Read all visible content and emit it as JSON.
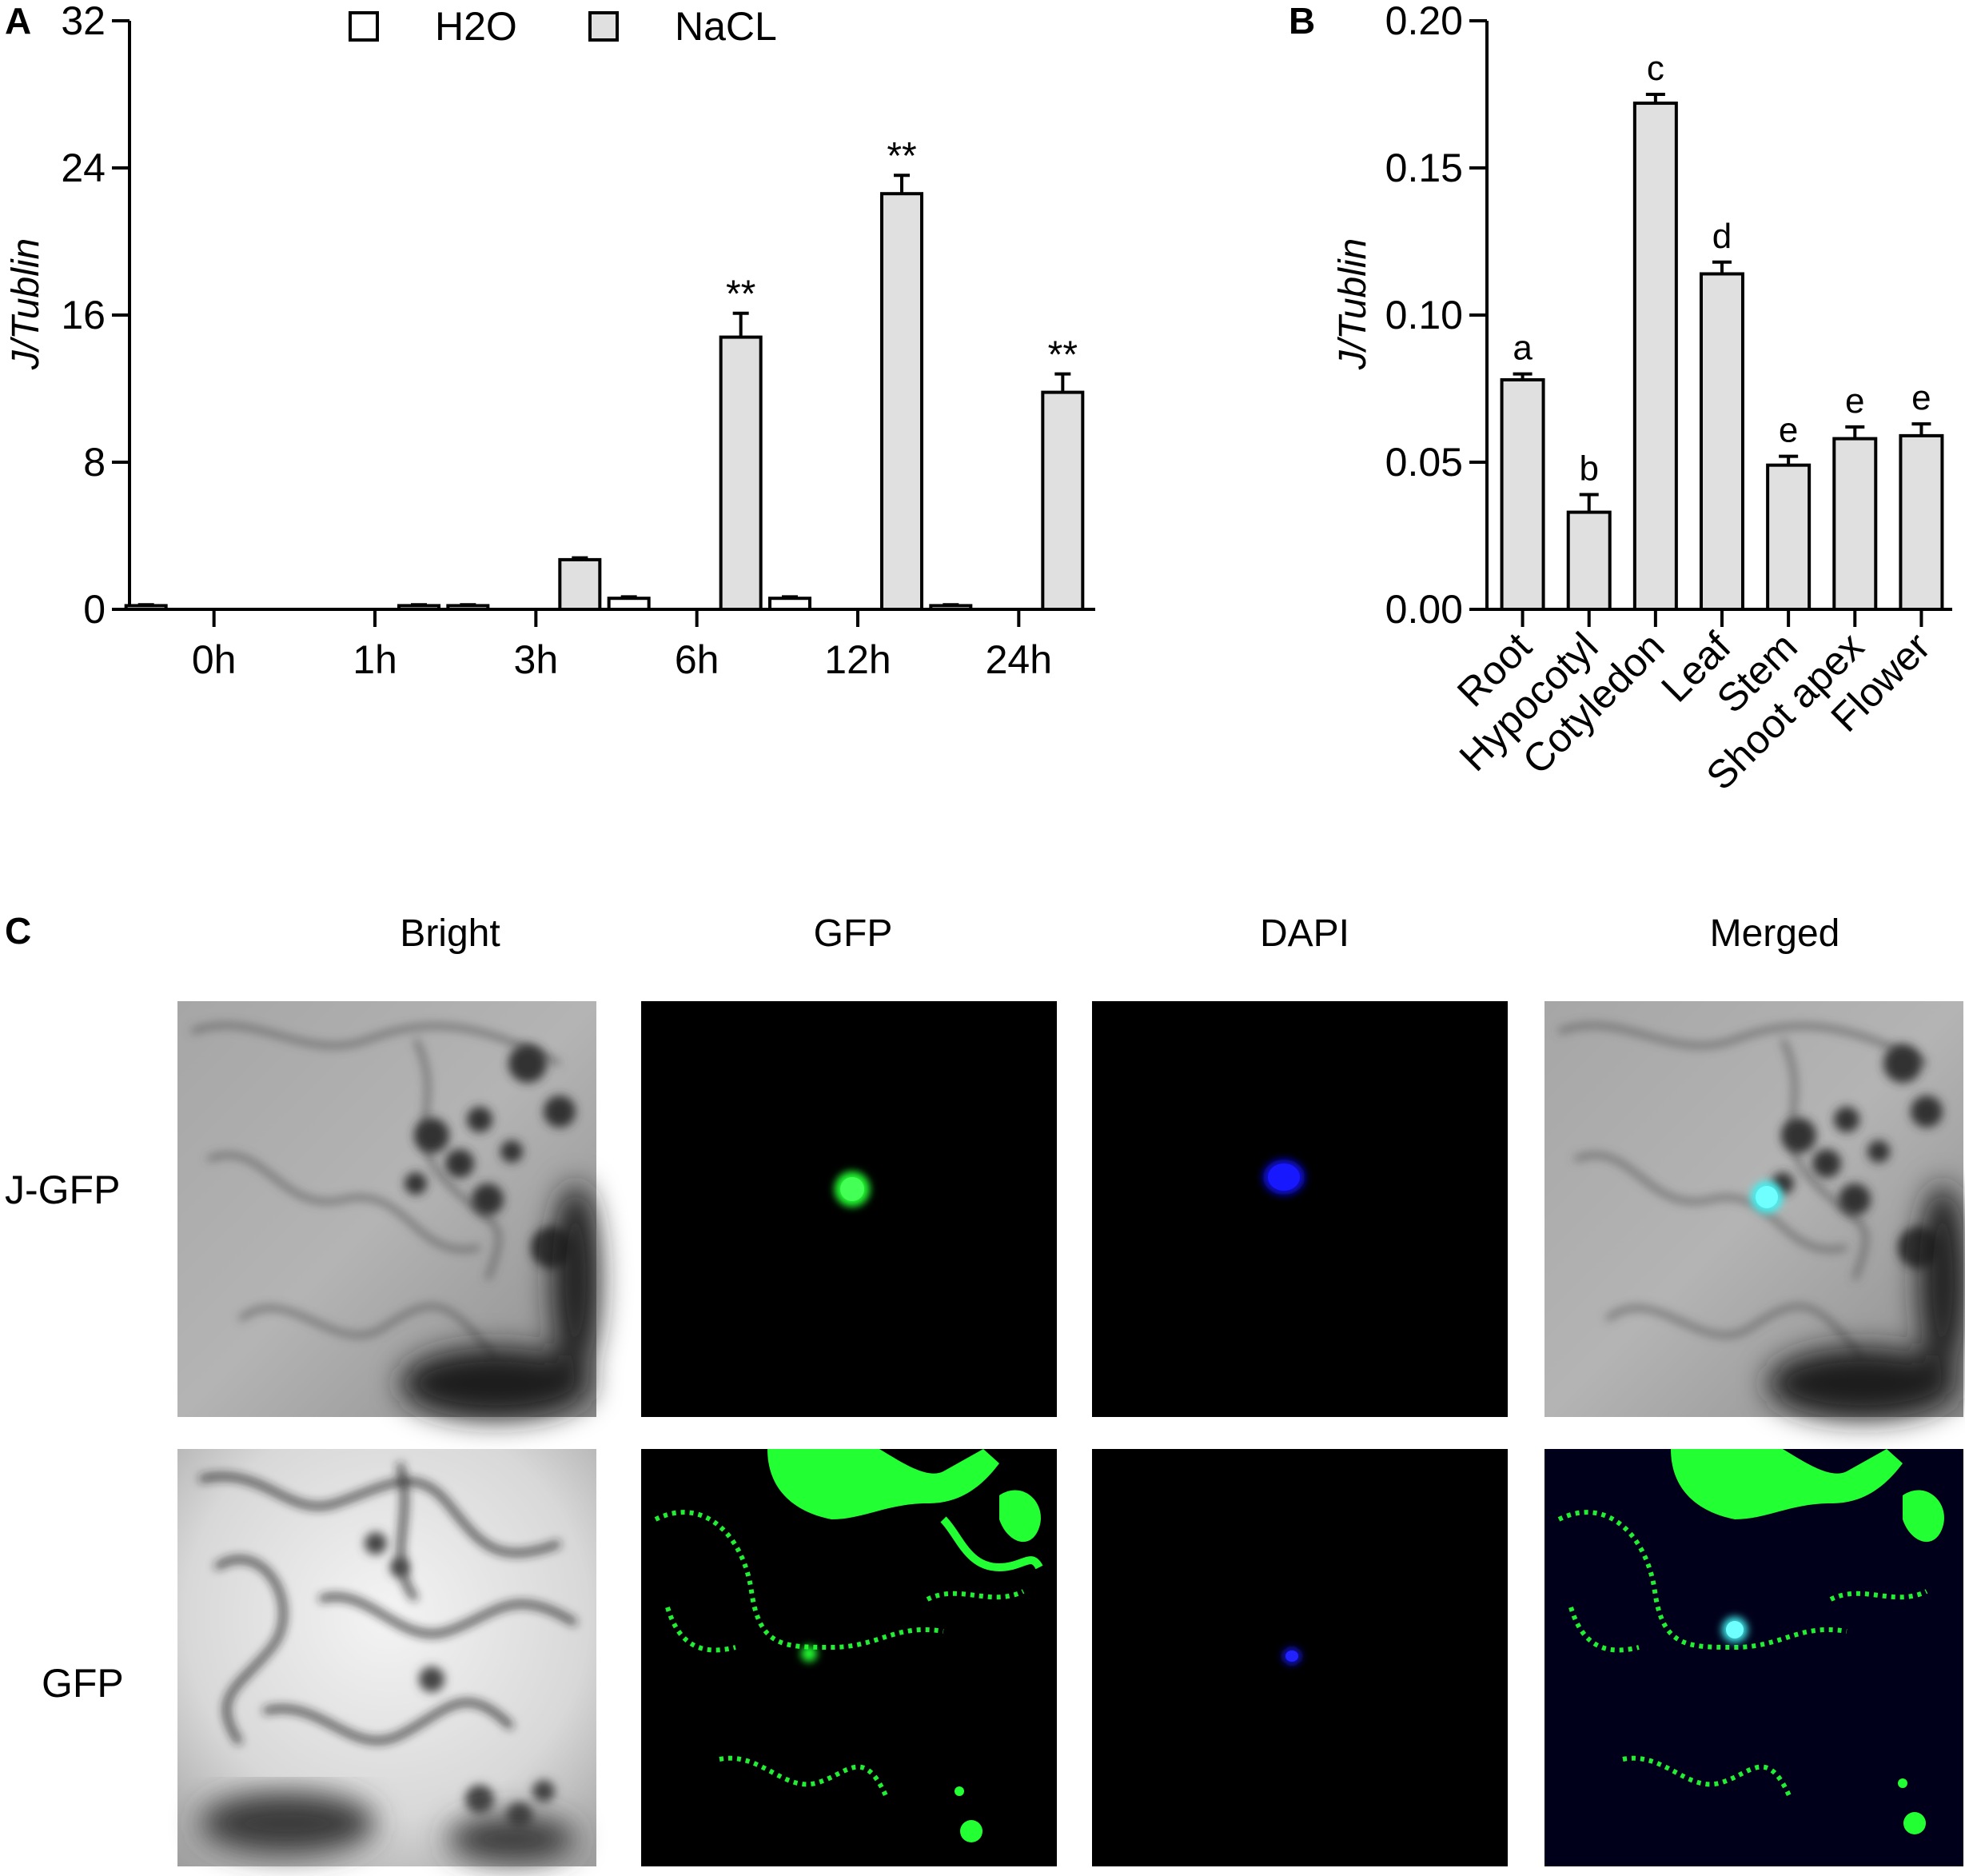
{
  "panels": {
    "a": "A",
    "b": "B",
    "c": "C"
  },
  "colors": {
    "h2o": "#ffffff",
    "nacl": "#e0e0e0",
    "bar_b": "#e0e0e0",
    "green": "#22ff33",
    "blue": "#1010e8",
    "cyan": "#40f0f0"
  },
  "chart_data": [
    {
      "type": "bar",
      "panel": "A",
      "title": "",
      "xlabel": "",
      "ylabel": "J/Tublin",
      "ylim": [
        0,
        32
      ],
      "yticks": [
        0,
        8,
        16,
        24,
        32
      ],
      "categories": [
        "0h",
        "1h",
        "3h",
        "6h",
        "12h",
        "24h"
      ],
      "legend_placement": "top",
      "series": [
        {
          "name": "H2O",
          "values": [
            0.2,
            0.0,
            0.2,
            0.6,
            0.6,
            0.2
          ],
          "errors": [
            0.05,
            0,
            0.05,
            0.08,
            0.08,
            0.05
          ]
        },
        {
          "name": "NaCL",
          "values": [
            0.0,
            0.2,
            2.7,
            14.8,
            22.6,
            11.8
          ],
          "errors": [
            0,
            0.05,
            0.1,
            1.3,
            1.0,
            1.0
          ]
        }
      ],
      "significance": [
        "",
        "",
        "",
        "**",
        "**",
        "**"
      ]
    },
    {
      "type": "bar",
      "panel": "B",
      "title": "",
      "xlabel": "",
      "ylabel": "J/Tublin",
      "ylim": [
        0,
        0.2
      ],
      "yticks": [
        "0.00",
        "0.05",
        "0.10",
        "0.15",
        "0.20"
      ],
      "categories": [
        "Root",
        "Hypocotyl",
        "Cotyledon",
        "Leaf",
        "Stem",
        "Shoot apex",
        "Flower"
      ],
      "values": [
        0.078,
        0.033,
        0.172,
        0.114,
        0.049,
        0.058,
        0.059
      ],
      "errors": [
        0.002,
        0.006,
        0.003,
        0.004,
        0.003,
        0.004,
        0.004
      ],
      "letters": [
        "a",
        "b",
        "c",
        "d",
        "e",
        "e",
        "e"
      ]
    }
  ],
  "microscopy": {
    "columns": [
      "Bright",
      "GFP",
      "DAPI",
      "Merged"
    ],
    "rows": [
      "J-GFP",
      "GFP"
    ]
  }
}
